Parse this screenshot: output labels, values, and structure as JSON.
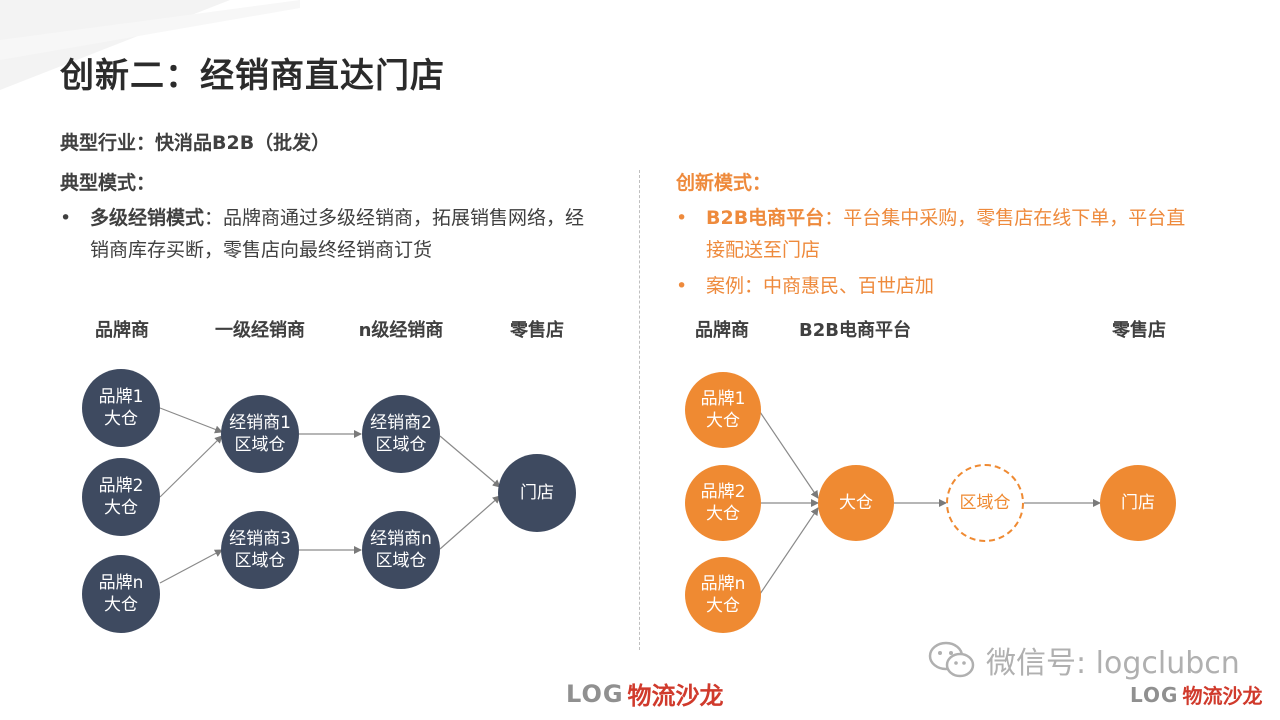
{
  "title": "创新二：经销商直达门店",
  "industry": "典型行业：快消品B2B（批发）",
  "left": {
    "heading": "典型模式：",
    "bullet": {
      "dot": "•",
      "bold": "多级经销模式",
      "text": "：品牌商通过多级经销商，拓展销售网络，经销商库存买断，零售店向最终经销商订货"
    },
    "columns": [
      "品牌商",
      "一级经销商",
      "n级经销商",
      "零售店"
    ],
    "brands": [
      [
        "品牌1",
        "大仓"
      ],
      [
        "品牌2",
        "大仓"
      ],
      [
        "品牌n",
        "大仓"
      ]
    ],
    "dist1": [
      [
        "经销商1",
        "区域仓"
      ],
      [
        "经销商3",
        "区域仓"
      ]
    ],
    "distn": [
      [
        "经销商2",
        "区域仓"
      ],
      [
        "经销商n",
        "区域仓"
      ]
    ],
    "store": "门店",
    "colors": {
      "node": "#3e4a60"
    }
  },
  "right": {
    "heading": "创新模式：",
    "bullet1": {
      "dot": "•",
      "bold": "B2B电商平台",
      "text": "：平台集中采购，零售店在线下单，平台直接配送至门店"
    },
    "bullet2": {
      "dot": "•",
      "text": "案例：中商惠民、百世店加"
    },
    "columns": [
      "品牌商",
      "B2B电商平台",
      "零售店"
    ],
    "brands": [
      [
        "品牌1",
        "大仓"
      ],
      [
        "品牌2",
        "大仓"
      ],
      [
        "品牌n",
        "大仓"
      ]
    ],
    "hub": "大仓",
    "region": "区域仓",
    "store": "门店",
    "colors": {
      "node": "#ef8a32",
      "accent": "#ee8a3c"
    }
  },
  "watermark": {
    "wechat": "微信号: logclubcn",
    "logo_en": "LOG",
    "logo_cn": "物流沙龙"
  }
}
